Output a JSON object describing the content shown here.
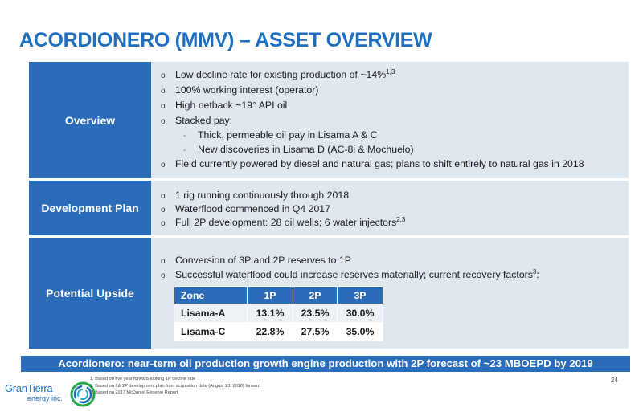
{
  "title": "ACORDIONERO (MMV) – ASSET OVERVIEW",
  "overview": {
    "label": "Overview",
    "bullets": [
      {
        "text": "Low decline rate for existing production of ~14%",
        "sup": "1,3"
      },
      {
        "text": "100% working interest (operator)"
      },
      {
        "text": "High netback ~19° API oil"
      },
      {
        "text": "Stacked pay:"
      },
      {
        "text": "Thick, permeable oil pay in Lisama A & C",
        "sub": true
      },
      {
        "text": "New discoveries in Lisama D (AC-8i & Mochuelo)",
        "sub": true
      },
      {
        "text": "Field currently powered by diesel and natural gas; plans to shift entirely to natural gas in 2018"
      }
    ]
  },
  "development": {
    "label": "Development Plan",
    "bullets": [
      {
        "text": "1 rig running continuously through 2018"
      },
      {
        "text": "Waterflood commenced in Q4 2017"
      },
      {
        "text": "Full 2P development: 28 oil wells; 6 water injectors",
        "sup": "2,3"
      }
    ]
  },
  "upside": {
    "label": "Potential Upside",
    "bullets": [
      {
        "text": "Conversion of 3P and 2P reserves to 1P"
      },
      {
        "text": "Successful waterflood could increase reserves materially; current recovery factors",
        "sup": "3",
        "tail": ":"
      }
    ],
    "table": {
      "headers": [
        "Zone",
        "1P",
        "2P",
        "3P"
      ],
      "rows": [
        [
          "Lisama-A",
          "13.1%",
          "23.5%",
          "30.0%"
        ],
        [
          "Lisama-C",
          "22.8%",
          "27.5%",
          "35.0%"
        ]
      ]
    }
  },
  "banner": "Acordionero: near-term oil production growth engine production with 2P forecast of ~23 MBOEPD by 2019",
  "footnotes": [
    "1.  Based on five year forward-looking 1P decline rate",
    "2.  Based on full 2P development plan from acquisition date (August 23, 2016) forward",
    "3.  Based on 2017 McDaniel Reserve Report"
  ],
  "page_number": "24",
  "logo": {
    "name": "GranTierra",
    "sub": "energy inc."
  },
  "bullet_marker": "o",
  "sub_marker": "-"
}
